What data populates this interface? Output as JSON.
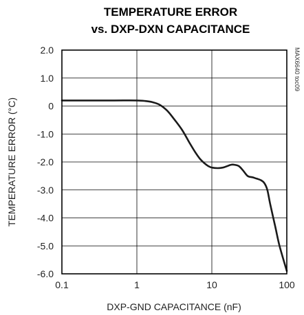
{
  "chart_data": {
    "type": "line",
    "title_lines": [
      "TEMPERATURE ERROR",
      "vs. DXP-DXN CAPACITANCE"
    ],
    "xlabel": "DXP-GND CAPACITANCE (nF)",
    "ylabel": "TEMPERATURE ERROR (°C)",
    "x_scale": "log",
    "xlim": [
      0.1,
      100
    ],
    "ylim": [
      -6.0,
      2.0
    ],
    "x_ticks": [
      0.1,
      1,
      10,
      100
    ],
    "x_tick_labels": [
      "0.1",
      "1",
      "10",
      "100"
    ],
    "y_ticks": [
      2.0,
      1.0,
      0,
      -1.0,
      -2.0,
      -3.0,
      -4.0,
      -5.0,
      -6.0
    ],
    "y_tick_labels": [
      "2.0",
      "1.0",
      "0",
      "-1.0",
      "-2.0",
      "-3.0",
      "-4.0",
      "-5.0",
      "-6.0"
    ],
    "grid": true,
    "note": "MAX6640 toc09",
    "line_color": "#1a1a1a",
    "series": [
      {
        "x": [
          0.1,
          0.2,
          0.5,
          1.0,
          1.3,
          1.6,
          2.0,
          2.5,
          3.0,
          4.0,
          5.0,
          6.0,
          7.0,
          8.0,
          9.0,
          10.0,
          12.0,
          14.0,
          16.0,
          18.0,
          20.0,
          23.0,
          26.0,
          30.0,
          35.0,
          40.0,
          45.0,
          50.0,
          55.0,
          60.0,
          70.0,
          80.0,
          100.0
        ],
        "y": [
          0.2,
          0.2,
          0.2,
          0.2,
          0.18,
          0.14,
          0.05,
          -0.15,
          -0.4,
          -0.85,
          -1.3,
          -1.65,
          -1.9,
          -2.05,
          -2.15,
          -2.2,
          -2.22,
          -2.2,
          -2.15,
          -2.1,
          -2.1,
          -2.15,
          -2.3,
          -2.5,
          -2.55,
          -2.6,
          -2.65,
          -2.75,
          -3.0,
          -3.5,
          -4.3,
          -5.0,
          -5.9
        ]
      }
    ]
  }
}
